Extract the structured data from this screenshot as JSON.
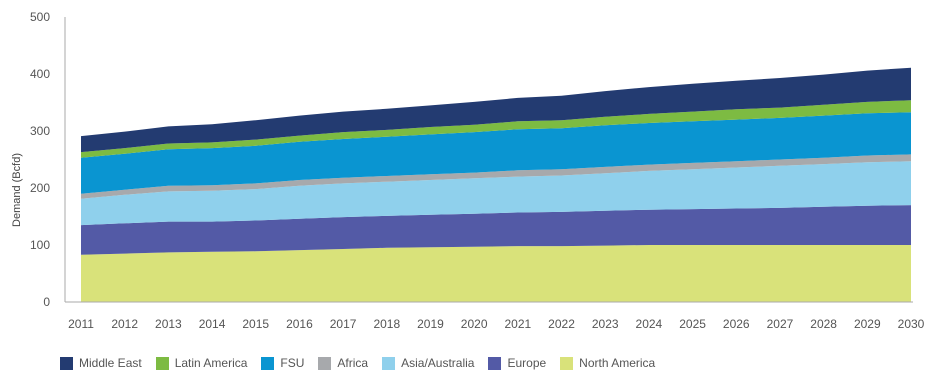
{
  "chart_data": {
    "type": "area",
    "stacked": true,
    "ylabel": "Demand (Bcfd)",
    "xlabel": "",
    "ylim": [
      0,
      500
    ],
    "yticks": [
      "0",
      "100",
      "200",
      "300",
      "400",
      "500"
    ],
    "x": [
      "2011",
      "2012",
      "2013",
      "2014",
      "2015",
      "2016",
      "2017",
      "2018",
      "2019",
      "2020",
      "2021",
      "2022",
      "2023",
      "2024",
      "2025",
      "2026",
      "2027",
      "2028",
      "2029",
      "2030"
    ],
    "grid": false,
    "legend_position": "bottom",
    "series": [
      {
        "name": "North America",
        "color": "#d9e27a",
        "values": [
          83,
          85,
          87,
          88,
          89,
          91,
          93,
          95,
          96,
          97,
          98,
          98,
          99,
          100,
          100,
          100,
          100,
          100,
          100,
          100
        ]
      },
      {
        "name": "Europe",
        "color": "#535aa6",
        "values": [
          52,
          53,
          54,
          53,
          54,
          55,
          56,
          56,
          57,
          58,
          59,
          60,
          61,
          62,
          63,
          64,
          65,
          67,
          69,
          70
        ]
      },
      {
        "name": "Asia/Australia",
        "color": "#8fd0ec",
        "values": [
          46,
          50,
          53,
          54,
          55,
          58,
          59,
          60,
          61,
          62,
          63,
          64,
          66,
          68,
          70,
          72,
          74,
          75,
          76,
          77
        ]
      },
      {
        "name": "Africa",
        "color": "#a7a9ac",
        "values": [
          9,
          9,
          10,
          10,
          10,
          10,
          10,
          10,
          10,
          10,
          11,
          11,
          11,
          11,
          11,
          11,
          11,
          11,
          12,
          12
        ]
      },
      {
        "name": "FSU",
        "color": "#0a95d1",
        "values": [
          63,
          63,
          64,
          65,
          66,
          67,
          68,
          69,
          70,
          71,
          72,
          72,
          73,
          73,
          73,
          73,
          73,
          74,
          74,
          74
        ]
      },
      {
        "name": "Latin America",
        "color": "#7dbb42",
        "values": [
          10,
          10,
          10,
          10,
          11,
          11,
          12,
          12,
          13,
          13,
          14,
          14,
          15,
          16,
          17,
          18,
          18,
          19,
          20,
          21
        ]
      },
      {
        "name": "Middle East",
        "color": "#233b71",
        "values": [
          28,
          29,
          30,
          32,
          34,
          35,
          36,
          37,
          38,
          40,
          41,
          43,
          45,
          47,
          49,
          50,
          52,
          53,
          55,
          57
        ]
      }
    ]
  },
  "legend_order": [
    "Middle East",
    "Latin America",
    "FSU",
    "Africa",
    "Asia/Australia",
    "Europe",
    "North America"
  ],
  "colors": {
    "axis": "#aaaaaa",
    "text": "#555555"
  }
}
